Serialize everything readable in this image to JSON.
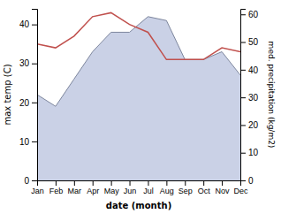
{
  "chart_data": {
    "type": "line",
    "xlabel": "date (month)",
    "ylabel": "max temp (C)",
    "y2label": "med. precipitation (kg/m2)",
    "categories": [
      "Jan",
      "Feb",
      "Mar",
      "Apr",
      "May",
      "Jun",
      "Jul",
      "Aug",
      "Sep",
      "Oct",
      "Nov",
      "Dec"
    ],
    "series": [
      {
        "type": "area",
        "color": "#adb9d9",
        "values": [
          22,
          19,
          26,
          33,
          38,
          38,
          42,
          41,
          31,
          31,
          33,
          27
        ]
      },
      {
        "type": "line",
        "color": "#c0504d",
        "values": [
          35,
          34,
          37,
          42,
          43,
          40,
          38,
          31,
          31,
          31,
          34,
          33
        ]
      }
    ],
    "ylim": [
      0,
      44
    ],
    "yticks": [
      0,
      10,
      20,
      30,
      40
    ],
    "y2lim": [
      0,
      62
    ],
    "y2ticks": [
      0,
      10,
      20,
      30,
      40,
      50,
      60
    ],
    "grid": false
  }
}
